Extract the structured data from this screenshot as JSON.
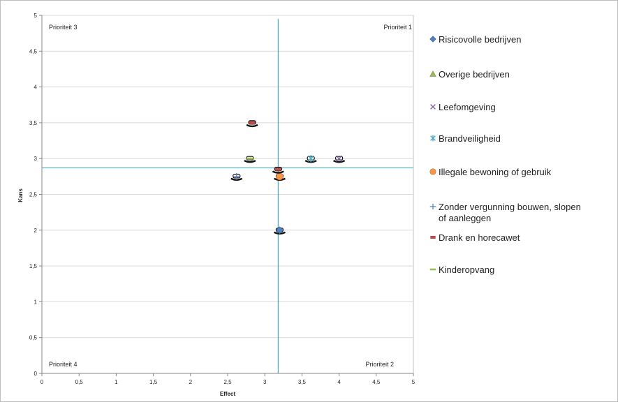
{
  "chart_data": {
    "type": "scatter",
    "title": "",
    "xlabel": "Effect",
    "ylabel": "Kans",
    "xlim": [
      0,
      5
    ],
    "ylim": [
      0,
      5
    ],
    "x_ticks": [
      "0",
      "0,5",
      "1",
      "1,5",
      "2",
      "2,5",
      "3",
      "3,5",
      "4",
      "4,5",
      "5"
    ],
    "y_ticks": [
      "0",
      "0,5",
      "1",
      "1,5",
      "2",
      "2,5",
      "3",
      "3,5",
      "4",
      "4,5",
      "5"
    ],
    "grid": "horizontal",
    "legend_position": "right",
    "reference_lines": {
      "x": 3.18,
      "y": 2.87,
      "color": "#4bacc6"
    },
    "quadrant_labels": {
      "top_left": "Prioriteit 3",
      "top_right": "Prioriteit 1",
      "bottom_left": "Prioriteit 4",
      "bottom_right": "Prioriteit 2"
    },
    "series": [
      {
        "name": "Risicovolle bedrijven",
        "marker": "diamond",
        "color": "#4f81bd",
        "points": [
          {
            "x": 3.2,
            "y": 2.0
          }
        ]
      },
      {
        "name": "Overige bedrijven",
        "marker": "triangle",
        "color": "#9bbb59",
        "points": []
      },
      {
        "name": "Leefomgeving",
        "marker": "x",
        "color": "#8064a2",
        "points": [
          {
            "x": 4.0,
            "y": 3.0
          }
        ]
      },
      {
        "name": "Brandveiligheid",
        "marker": "star",
        "color": "#4bacc6",
        "points": [
          {
            "x": 3.62,
            "y": 3.0
          }
        ]
      },
      {
        "name": "Illegale bewoning of gebruik",
        "marker": "circle",
        "color": "#f79646",
        "points": [
          {
            "x": 3.2,
            "y": 2.75
          }
        ]
      },
      {
        "name": "Zonder vergunning bouwen, slopen of aanleggen",
        "marker": "plus",
        "color": "#4f81bd",
        "points": [
          {
            "x": 2.62,
            "y": 2.75
          }
        ]
      },
      {
        "name": "Drank en horecawet",
        "marker": "dash",
        "color": "#c0504d",
        "points": [
          {
            "x": 2.83,
            "y": 3.5
          },
          {
            "x": 3.18,
            "y": 2.85
          }
        ]
      },
      {
        "name": "Kinderopvang",
        "marker": "hline",
        "color": "#9bbb59",
        "points": [
          {
            "x": 2.8,
            "y": 3.0
          }
        ]
      }
    ]
  }
}
